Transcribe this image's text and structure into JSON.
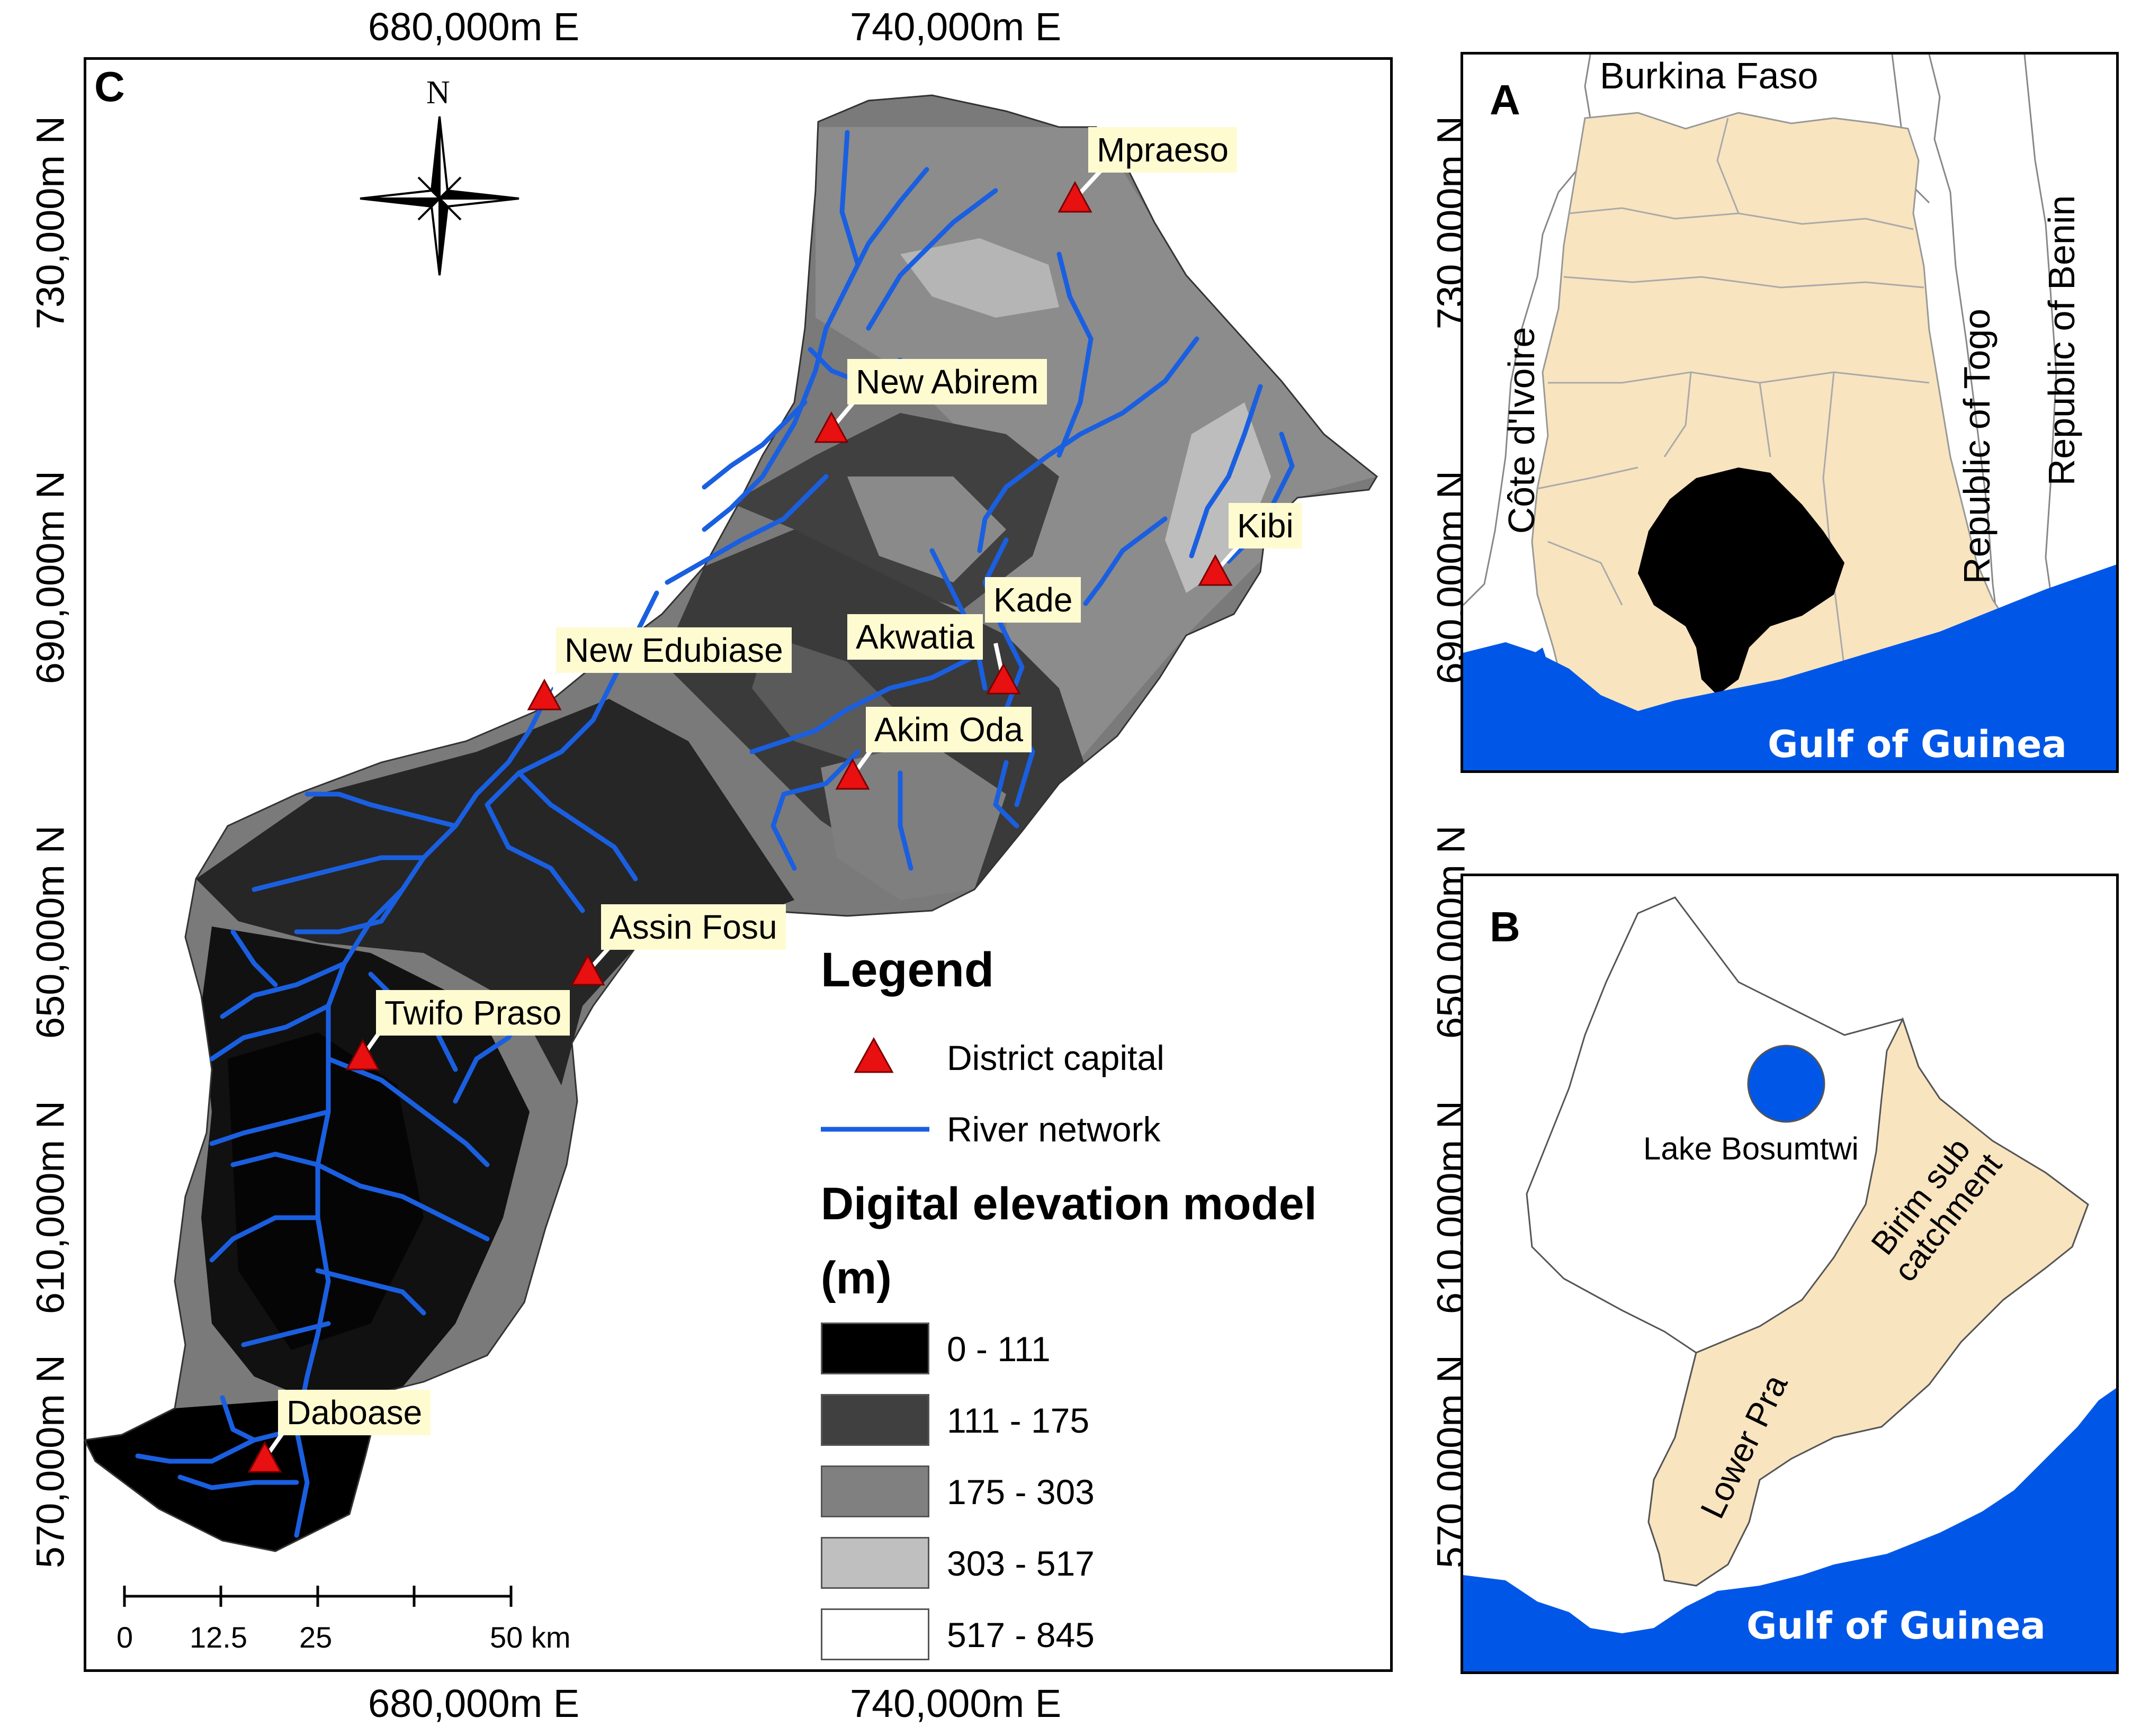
{
  "main_map": {
    "panel_label": "C",
    "top_coords": [
      "680,000m E",
      "740,000m E"
    ],
    "bottom_coords": [
      "680,000m E",
      "740,000m E"
    ],
    "left_coords": [
      "730,000m N",
      "690,000m N",
      "650,000m N",
      "610,000m N",
      "570,000m N"
    ],
    "right_coords": [
      "730,000m N",
      "690,000m N",
      "650,000m N",
      "610,000m N",
      "570,000m N"
    ],
    "north_label": "N",
    "towns": [
      "Mpraeso",
      "New Abirem",
      "Kibi",
      "Kade",
      "Akwatia",
      "New Edubiase",
      "Akim Oda",
      "Assin Fosu",
      "Twifo Praso",
      "Daboase"
    ],
    "scale_bar": {
      "labels": [
        "0",
        "12.5",
        "25",
        "50 km"
      ]
    },
    "legend": {
      "title": "Legend",
      "district_capital": "District capital",
      "river_network": "River network",
      "dem_title_line1": "Digital elevation model",
      "dem_title_line2": "(m)",
      "classes": [
        {
          "label": "0 - 111",
          "color": "#000000"
        },
        {
          "label": "111 - 175",
          "color": "#404040"
        },
        {
          "label": "175 - 303",
          "color": "#808080"
        },
        {
          "label": "303 - 517",
          "color": "#bfbfbf"
        },
        {
          "label": "517 - 845",
          "color": "#ffffff"
        }
      ]
    },
    "colors": {
      "river": "#1a5fe0",
      "triangle": "#e81010",
      "label_bg": "#fffbd1"
    }
  },
  "inset_a": {
    "panel_label": "A",
    "labels": {
      "burkina": "Burkina Faso",
      "cote": "Côte d'Ivoire",
      "togo": "Republic of Togo",
      "benin": "Republic of Benin",
      "gulf": "Gulf of Guinea"
    },
    "colors": {
      "land": "#f8e4bf",
      "sea": "#0057e7",
      "basin": "#000000"
    }
  },
  "inset_b": {
    "panel_label": "B",
    "labels": {
      "lake": "Lake Bosumtwi",
      "birim": "Birim sub catchment",
      "lower_pra": "Lower Pra",
      "gulf": "Gulf of Guinea"
    },
    "colors": {
      "catchment": "#f8e4bf",
      "sea": "#0057e7",
      "lake": "#0057e7"
    }
  }
}
